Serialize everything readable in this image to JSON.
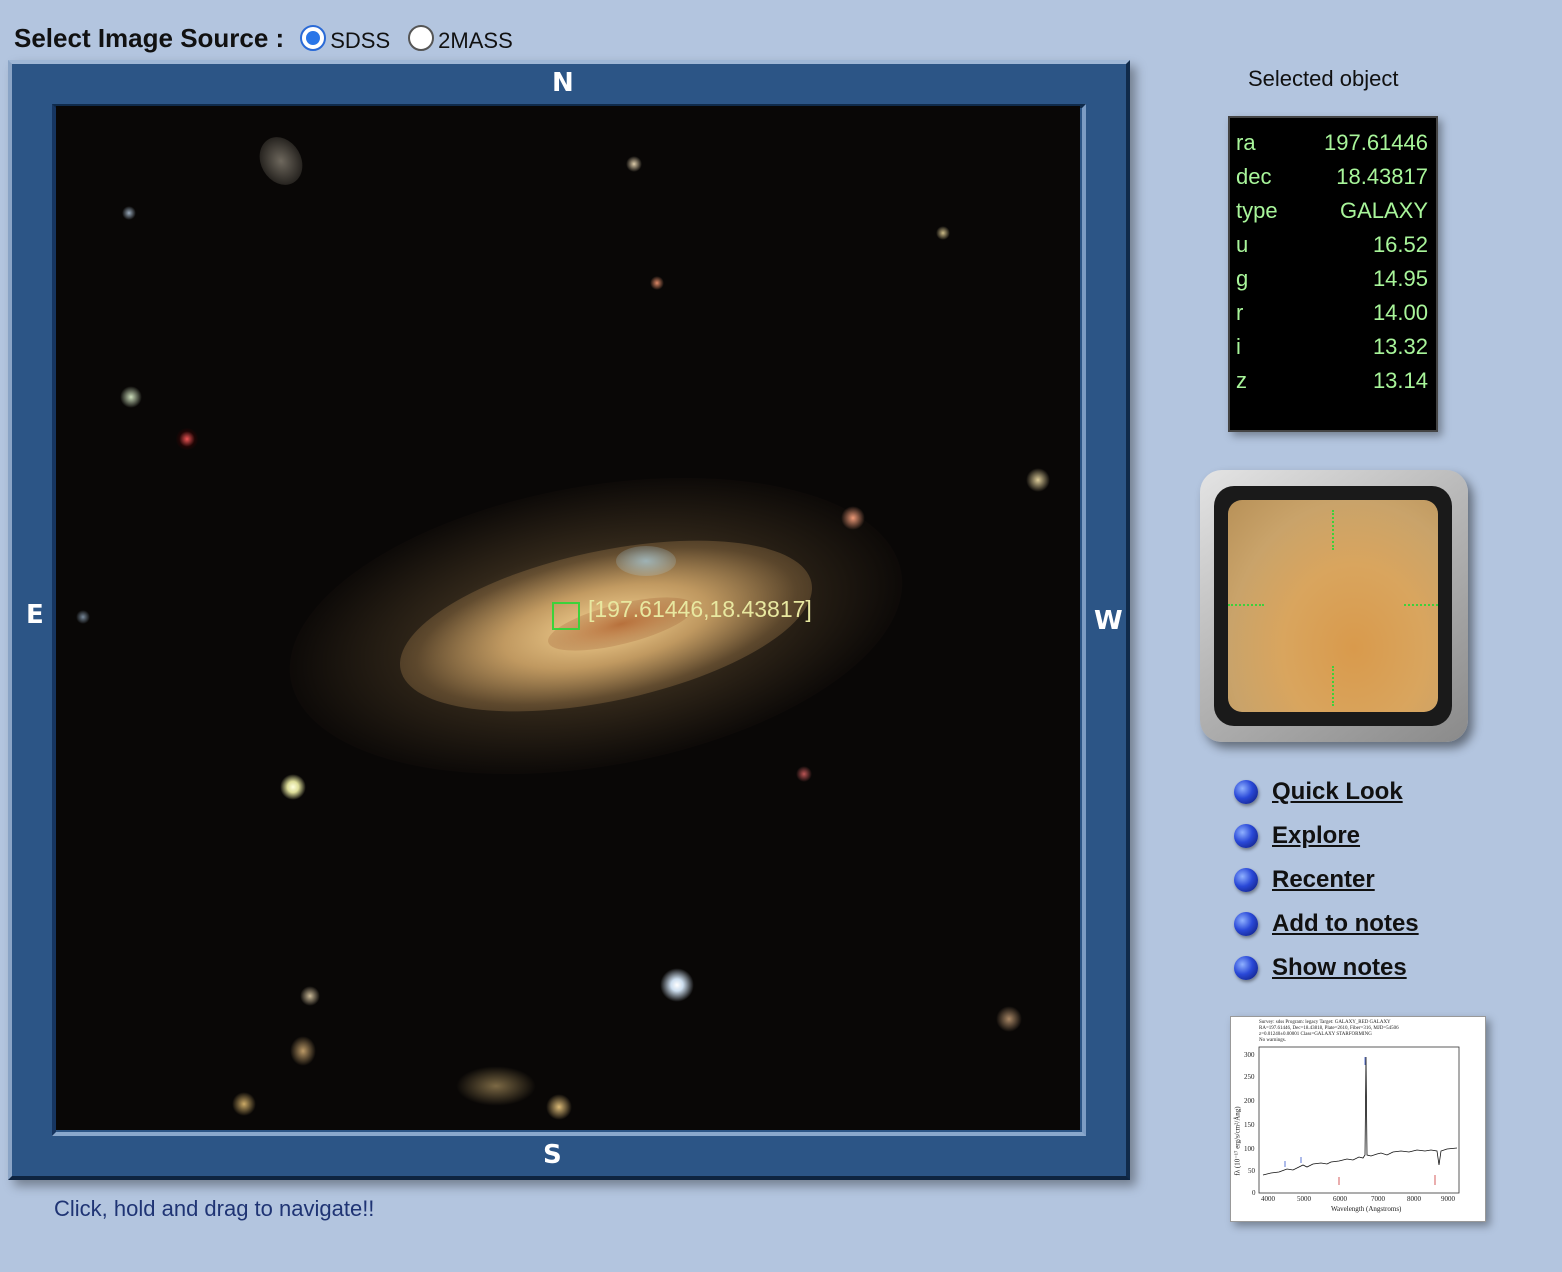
{
  "source_selector": {
    "title": "Select Image Source :",
    "options": [
      {
        "label": "SDSS",
        "checked": true
      },
      {
        "label": "2MASS",
        "checked": false
      }
    ]
  },
  "navigator": {
    "compass": {
      "north": "N",
      "south": "S",
      "east": "E",
      "west": "W"
    },
    "marker_label": "[197.61446,18.43817]",
    "hint": "Click, hold and drag to navigate!!"
  },
  "selected_object": {
    "title": "Selected object",
    "rows": [
      {
        "key": "ra",
        "value": "197.61446"
      },
      {
        "key": "dec",
        "value": "18.43817"
      },
      {
        "key": "type",
        "value": "GALAXY"
      },
      {
        "key": "u",
        "value": "16.52"
      },
      {
        "key": "g",
        "value": "14.95"
      },
      {
        "key": "r",
        "value": "14.00"
      },
      {
        "key": "i",
        "value": "13.32"
      },
      {
        "key": "z",
        "value": "13.14"
      }
    ]
  },
  "links": [
    {
      "label": "Quick Look"
    },
    {
      "label": "Explore"
    },
    {
      "label": "Recenter"
    },
    {
      "label": "Add to notes"
    },
    {
      "label": "Show notes"
    }
  ],
  "spectrum": {
    "header": "Survey: sdss Program: legacy Target: GALAXY_RED GALAXY\nRA=197.61446, Dec=18.43818, Plate=2610, Fiber=316, MJD=54506\nz=0.01240±0.00001 Class=GALAXY STARFORMING\nNo warnings.",
    "x_ticks": [
      "4000",
      "5000",
      "6000",
      "7000",
      "8000",
      "9000"
    ],
    "y_ticks": [
      "300",
      "250",
      "200",
      "150",
      "100",
      "50",
      "0"
    ],
    "xlabel": "Wavelength (Angstroms)",
    "ylabel": "fλ (10⁻¹⁷ erg/s/cm²/Ång)"
  },
  "colors": {
    "page_bg": "#b3c5df",
    "frame": "#2c5586",
    "marker": "#3bd23b",
    "panel_text": "#a8f59a",
    "hint_text": "#1f3474"
  }
}
